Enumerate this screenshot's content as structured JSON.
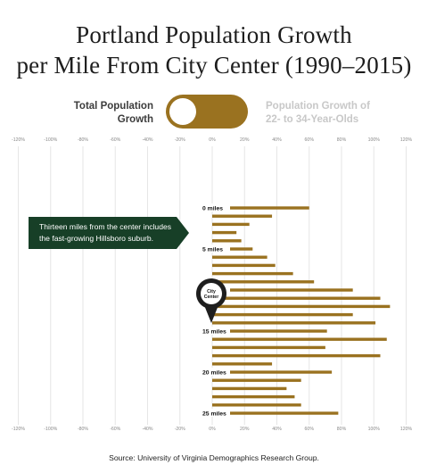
{
  "title_line1": "Portland Population Growth",
  "title_line2": "per Mile From City Center (1990–2015)",
  "toggle": {
    "left_label_line1": "Total Population",
    "left_label_line2": "Growth",
    "right_label_line1": "Population Growth of",
    "right_label_line2": "22- to 34-Year-Olds",
    "state": "left"
  },
  "callout": {
    "line1": "Thirteen miles from the center includes",
    "line2": "the fast-growing Hillsboro suburb."
  },
  "marker_label_line1": "City",
  "marker_label_line2": "Center",
  "source": "Source: University of Virginia Demographics Research Group.",
  "colors": {
    "bar": "#9a7220",
    "callout": "#173f27",
    "grid": "#e6e6e6"
  },
  "chart_data": {
    "type": "bar",
    "orientation": "horizontal",
    "xlim": [
      -120,
      120
    ],
    "x_ticks": [
      "-120%",
      "-100%",
      "-80%",
      "-60%",
      "-40%",
      "-20%",
      "0%",
      "20%",
      "40%",
      "60%",
      "80%",
      "100%",
      "120%"
    ],
    "x_tick_values": [
      -120,
      -100,
      -80,
      -60,
      -40,
      -20,
      0,
      20,
      40,
      60,
      80,
      100,
      120
    ],
    "mile_labels": [
      {
        "mile": 0,
        "label": "0 miles"
      },
      {
        "mile": 5,
        "label": "5 miles"
      },
      {
        "mile": 10,
        "label": "10 miles"
      },
      {
        "mile": 15,
        "label": "15 miles"
      },
      {
        "mile": 20,
        "label": "20 miles"
      },
      {
        "mile": 25,
        "label": "25 miles"
      }
    ],
    "miles": [
      0,
      1,
      2,
      3,
      4,
      5,
      6,
      7,
      8,
      9,
      10,
      11,
      12,
      13,
      14,
      15,
      16,
      17,
      18,
      19,
      20,
      21,
      22,
      23,
      24,
      25
    ],
    "values": [
      60,
      37,
      23,
      15,
      18,
      25,
      34,
      39,
      50,
      63,
      87,
      104,
      110,
      87,
      101,
      71,
      108,
      70,
      104,
      37,
      74,
      55,
      46,
      51,
      55,
      78
    ],
    "grid": true
  }
}
